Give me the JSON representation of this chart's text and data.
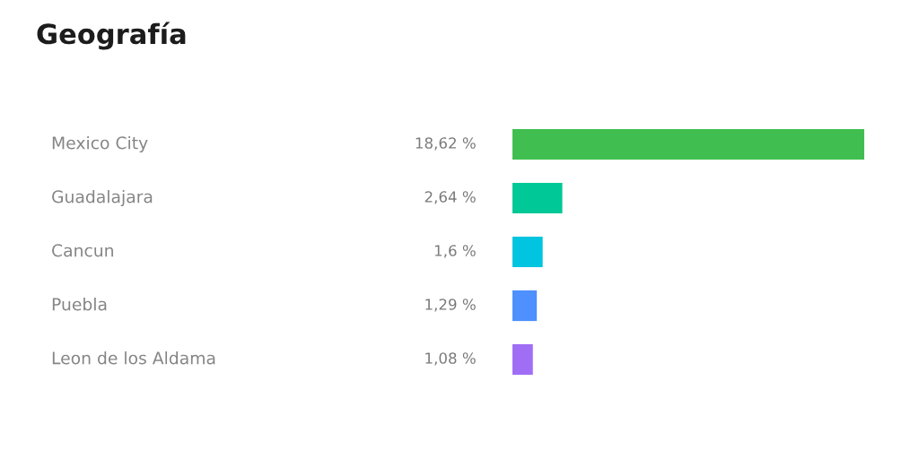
{
  "chart_data": {
    "type": "bar",
    "orientation": "horizontal",
    "title": "Geografía",
    "categories": [
      "Mexico City",
      "Guadalajara",
      "Cancun",
      "Puebla",
      "Leon de los Aldama"
    ],
    "values": [
      18.62,
      2.64,
      1.6,
      1.29,
      1.08
    ],
    "colors": [
      "#40bf50",
      "#00c896",
      "#00c4e0",
      "#4d90fe",
      "#a06ef5"
    ],
    "value_labels": [
      "18,62 %",
      "2,64 %",
      "1,6 %",
      "1,29 %",
      "1,08 %"
    ],
    "tick_labels": "y"
  }
}
